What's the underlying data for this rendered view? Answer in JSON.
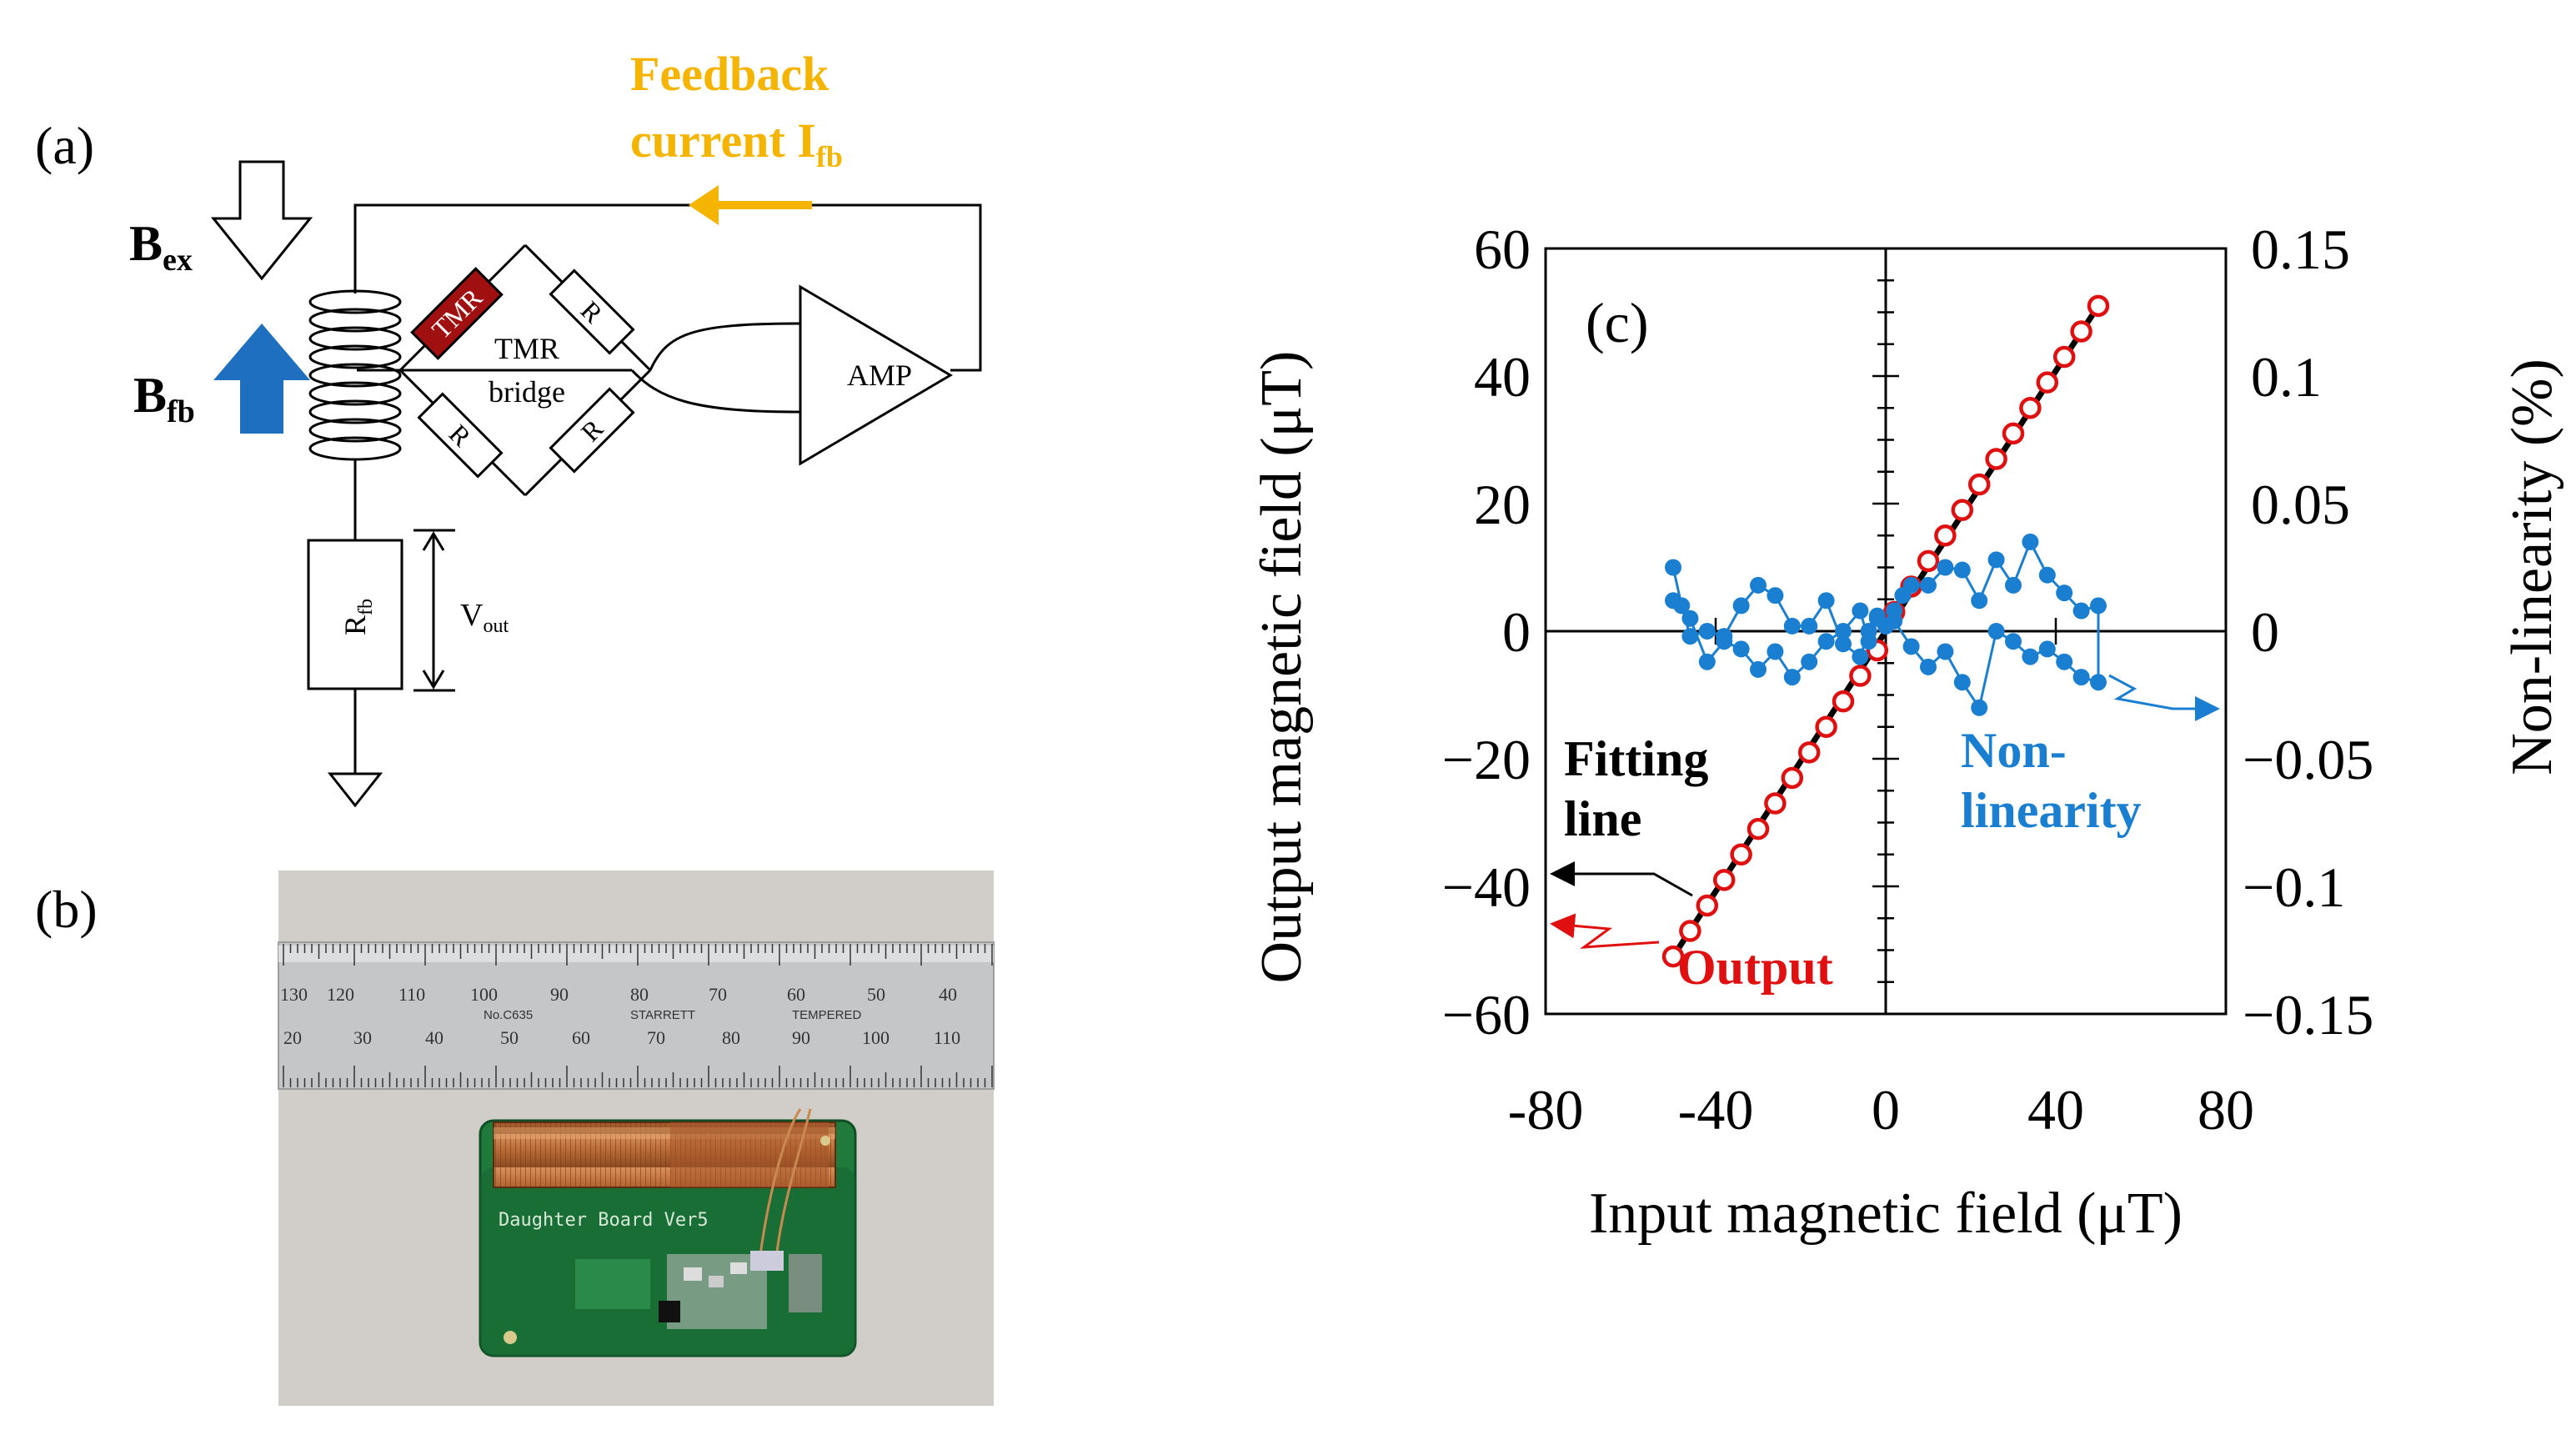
{
  "panel_a": {
    "label": "(a)",
    "feedback_line1": "Feedback",
    "feedback_line2": "current I",
    "feedback_sub": "fb",
    "bex_main": "B",
    "bex_sub": "ex",
    "bfb_main": "B",
    "bfb_sub": "fb",
    "tmr": "TMR",
    "r_top": "R",
    "r_bl": "R",
    "r_br": "R",
    "bridge_line1": "TMR",
    "bridge_line2": "bridge",
    "amp": "AMP",
    "rfb_main": "R",
    "rfb_sub": "fb",
    "vout_main": "V",
    "vout_sub": "out",
    "colors": {
      "feedback": "#f5b400",
      "bfb_arrow": "#1f6fc0",
      "tmr_fill": "#a01010"
    }
  },
  "panel_b": {
    "label": "(b)",
    "ruler_top_numbers": [
      "130",
      "120",
      "110",
      "100",
      "90",
      "80",
      "70",
      "60",
      "50",
      "40"
    ],
    "ruler_bottom_numbers": [
      "20",
      "30",
      "40",
      "50",
      "60",
      "70",
      "80",
      "90",
      "100",
      "110"
    ],
    "ruler_brand_1": "No.C635",
    "ruler_brand_2": "STARRETT",
    "ruler_brand_3": "TEMPERED",
    "board_text": "Daughter Board Ver5"
  },
  "panel_c": {
    "label": "(c)",
    "x_label": "Input magnetic field (μT)",
    "y_left_label": "Output magnetic field (μT)",
    "y_right_label": "Non-linearity (%)",
    "x_ticks": [
      "-80",
      "-40",
      "0",
      "40",
      "80"
    ],
    "y_left_ticks": [
      "60",
      "40",
      "20",
      "0",
      "−20",
      "−40",
      "−60"
    ],
    "y_right_ticks": [
      "0.15",
      "0.1",
      "0.05",
      "0",
      "−0.05",
      "−0.1",
      "−0.15"
    ],
    "ann_fitting_1": "Fitting",
    "ann_fitting_2": "line",
    "ann_nonlin_1": "Non-",
    "ann_nonlin_2": "linearity",
    "ann_output": "Output",
    "colors": {
      "output": "#e01010",
      "fit": "#000000",
      "nonlinearity": "#1a7fd0"
    }
  },
  "chart_data": {
    "type": "line",
    "xlim": [
      -80,
      80
    ],
    "ylim_left": [
      -60,
      60
    ],
    "ylim_right": [
      -0.15,
      0.15
    ],
    "xlabel": "Input magnetic field (μT)",
    "ylabel_left": "Output magnetic field (μT)",
    "ylabel_right": "Non-linearity (%)",
    "series": [
      {
        "name": "Output",
        "axis": "left",
        "marker": "open-circle",
        "x": [
          -50,
          -46,
          -42,
          -38,
          -34,
          -30,
          -26,
          -22,
          -18,
          -14,
          -10,
          -6,
          -2,
          2,
          6,
          10,
          14,
          18,
          22,
          26,
          30,
          34,
          38,
          42,
          46,
          50
        ],
        "y": [
          -51,
          -47,
          -43,
          -39,
          -35,
          -31,
          -27,
          -23,
          -19,
          -15,
          -11,
          -7,
          -3,
          3,
          7,
          11,
          15,
          19,
          23,
          27,
          31,
          35,
          39,
          43,
          47,
          51
        ]
      },
      {
        "name": "Fitting line",
        "axis": "left",
        "marker": "none",
        "x": [
          -50,
          50
        ],
        "y": [
          -51,
          51
        ]
      },
      {
        "name": "Non-linearity",
        "axis": "right",
        "marker": "filled-circle",
        "x": [
          -50,
          -48,
          -46,
          -42,
          -38,
          -34,
          -30,
          -26,
          -22,
          -18,
          -14,
          -10,
          -6,
          -4,
          -2,
          0,
          2,
          4,
          6,
          10,
          14,
          18,
          22,
          26,
          30,
          34,
          38,
          42,
          46,
          50,
          50,
          46,
          42,
          38,
          34,
          30,
          26,
          22,
          18,
          14,
          10,
          6,
          2,
          0,
          -2,
          -4,
          -6,
          -10,
          -14,
          -18,
          -22,
          -26,
          -30,
          -34,
          -38,
          -42,
          -46,
          -50
        ],
        "y": [
          0.025,
          0.01,
          -0.002,
          0.0,
          -0.002,
          0.01,
          0.018,
          0.014,
          0.002,
          0.002,
          0.012,
          -0.005,
          -0.01,
          0.0,
          0.006,
          0.002,
          0.008,
          0.014,
          0.018,
          0.018,
          0.025,
          0.024,
          0.012,
          0.028,
          0.018,
          0.035,
          0.022,
          0.015,
          0.008,
          0.01,
          -0.02,
          -0.018,
          -0.012,
          -0.007,
          -0.01,
          -0.004,
          0.0,
          -0.03,
          -0.02,
          -0.008,
          -0.014,
          -0.006,
          0.004,
          0.002,
          0.005,
          -0.004,
          0.008,
          0.0,
          -0.004,
          -0.012,
          -0.018,
          -0.008,
          -0.015,
          -0.007,
          -0.004,
          -0.012,
          0.005,
          0.012
        ]
      }
    ]
  }
}
